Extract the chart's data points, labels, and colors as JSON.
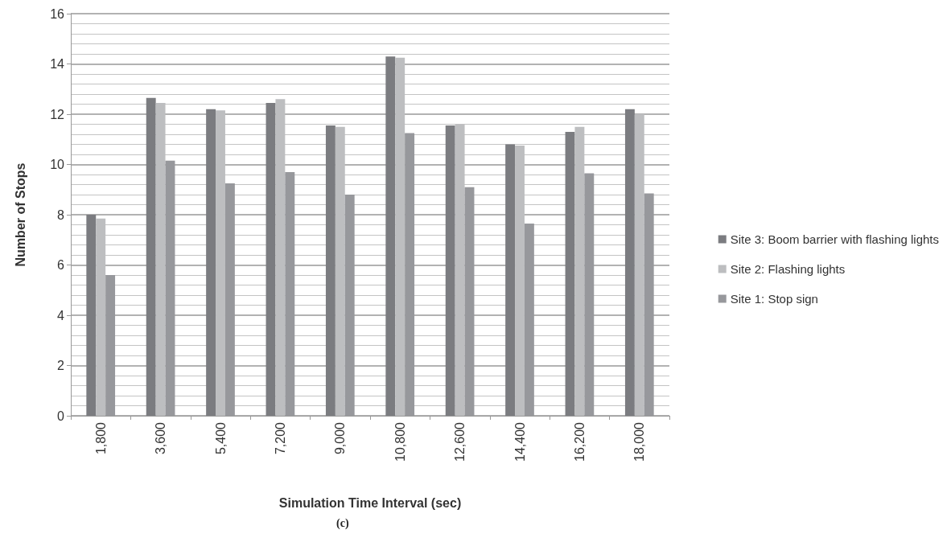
{
  "chart_data": {
    "type": "bar",
    "xlabel": "Simulation Time Interval (sec)",
    "ylabel": "Number of Stops",
    "categories": [
      "1,800",
      "3,600",
      "5,400",
      "7,200",
      "9,000",
      "10,800",
      "12,600",
      "14,400",
      "16,200",
      "18,000"
    ],
    "series": [
      {
        "name": "Site 3: Boom barrier with flashing lights",
        "color": "#7b7c80",
        "values": [
          8.0,
          12.65,
          12.2,
          12.45,
          11.55,
          14.3,
          11.55,
          10.8,
          11.3,
          12.2
        ]
      },
      {
        "name": "Site 2: Flashing lights",
        "color": "#bdbec0",
        "values": [
          7.85,
          12.45,
          12.15,
          12.6,
          11.5,
          14.25,
          11.6,
          10.75,
          11.5,
          12.0
        ]
      },
      {
        "name": "Site 1: Stop sign",
        "color": "#97989c",
        "values": [
          5.6,
          10.15,
          9.25,
          9.7,
          8.8,
          11.25,
          9.1,
          7.65,
          9.65,
          8.85
        ]
      }
    ],
    "ylim": [
      0,
      16
    ],
    "yticks": [
      0,
      2,
      4,
      6,
      8,
      10,
      12,
      14,
      16
    ],
    "grid": "y",
    "legend": "right",
    "annotations": [
      "(c)"
    ]
  }
}
